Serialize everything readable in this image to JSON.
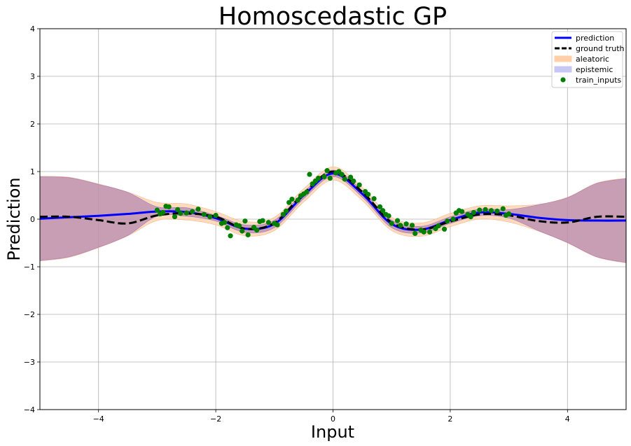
{
  "chart_data": {
    "type": "line",
    "title": "Homoscedastic GP",
    "xlabel": "Input",
    "ylabel": "Prediction",
    "xlim": [
      -5,
      5
    ],
    "ylim": [
      -4,
      4
    ],
    "xticks": [
      -4,
      -2,
      0,
      2,
      4
    ],
    "yticks": [
      -4,
      -3,
      -2,
      -1,
      0,
      1,
      2,
      3,
      4
    ],
    "xtick_labels": [
      "−4",
      "−2",
      "0",
      "2",
      "4"
    ],
    "ytick_labels": [
      "−4",
      "−3",
      "−2",
      "−1",
      "0",
      "1",
      "2",
      "3",
      "4"
    ],
    "grid": true,
    "legend": {
      "placement": "top-right",
      "entries": [
        {
          "label": "prediction",
          "kind": "line",
          "color": "#0000ff"
        },
        {
          "label": "ground truth",
          "kind": "dashed",
          "color": "#000000"
        },
        {
          "label": "aleatoric",
          "kind": "patch",
          "color": "#ffcfa8"
        },
        {
          "label": "epistemic",
          "kind": "patch",
          "color": "#c7c7f5"
        },
        {
          "label": "train_inputs",
          "kind": "marker",
          "color": "#008000"
        }
      ]
    },
    "x_grid": [
      -5.0,
      -4.5,
      -4.0,
      -3.5,
      -3.0,
      -2.5,
      -2.0,
      -1.5,
      -1.0,
      -0.5,
      0.0,
      0.5,
      1.0,
      1.5,
      2.0,
      2.5,
      3.0,
      3.5,
      4.0,
      4.5,
      5.0
    ],
    "series": [
      {
        "name": "prediction",
        "values": [
          0.01,
          0.04,
          0.07,
          0.11,
          0.16,
          0.15,
          0.02,
          -0.2,
          -0.1,
          0.5,
          0.96,
          0.53,
          -0.1,
          -0.22,
          -0.02,
          0.14,
          0.11,
          0.03,
          -0.02,
          -0.03,
          -0.03
        ]
      },
      {
        "name": "ground truth",
        "values": [
          0.05,
          0.05,
          -0.02,
          -0.09,
          0.08,
          0.12,
          0.05,
          -0.2,
          -0.08,
          0.54,
          1.0,
          0.57,
          -0.07,
          -0.22,
          -0.05,
          0.1,
          0.08,
          -0.04,
          -0.07,
          0.05,
          0.05
        ]
      },
      {
        "name": "aleatoric",
        "lower": [
          -0.88,
          -0.8,
          -0.6,
          -0.35,
          -0.03,
          -0.02,
          -0.12,
          -0.35,
          -0.24,
          0.36,
          0.82,
          0.39,
          -0.24,
          -0.36,
          -0.16,
          0.0,
          -0.06,
          -0.25,
          -0.5,
          -0.8,
          -0.92
        ],
        "upper": [
          0.9,
          0.88,
          0.74,
          0.57,
          0.35,
          0.32,
          0.16,
          -0.05,
          0.04,
          0.64,
          1.1,
          0.67,
          0.04,
          -0.08,
          0.12,
          0.28,
          0.28,
          0.31,
          0.46,
          0.76,
          0.86
        ]
      },
      {
        "name": "epistemic",
        "lower": [
          -0.87,
          -0.79,
          -0.59,
          -0.34,
          0.06,
          0.06,
          -0.04,
          -0.28,
          -0.18,
          0.43,
          0.89,
          0.46,
          -0.18,
          -0.29,
          -0.09,
          0.07,
          0.02,
          -0.24,
          -0.49,
          -0.79,
          -0.91
        ],
        "upper": [
          0.89,
          0.87,
          0.73,
          0.56,
          0.26,
          0.24,
          0.08,
          -0.12,
          -0.02,
          0.57,
          1.03,
          0.6,
          -0.02,
          -0.15,
          0.05,
          0.21,
          0.2,
          0.3,
          0.45,
          0.75,
          0.85
        ]
      }
    ],
    "train_inputs": [
      [
        -3.0,
        0.19
      ],
      [
        -2.95,
        0.11
      ],
      [
        -2.9,
        0.14
      ],
      [
        -2.85,
        0.27
      ],
      [
        -2.8,
        0.26
      ],
      [
        -2.7,
        0.05
      ],
      [
        -2.65,
        0.2
      ],
      [
        -2.6,
        0.12
      ],
      [
        -2.5,
        0.13
      ],
      [
        -2.4,
        0.16
      ],
      [
        -2.3,
        0.21
      ],
      [
        -2.2,
        0.1
      ],
      [
        -2.1,
        0.05
      ],
      [
        -2.0,
        0.08
      ],
      [
        -1.9,
        -0.09
      ],
      [
        -1.85,
        -0.07
      ],
      [
        -1.8,
        -0.18
      ],
      [
        -1.75,
        -0.35
      ],
      [
        -1.65,
        -0.12
      ],
      [
        -1.6,
        -0.14
      ],
      [
        -1.55,
        -0.25
      ],
      [
        -1.5,
        -0.04
      ],
      [
        -1.45,
        -0.33
      ],
      [
        -1.35,
        -0.17
      ],
      [
        -1.3,
        -0.23
      ],
      [
        -1.25,
        -0.05
      ],
      [
        -1.2,
        -0.03
      ],
      [
        -1.1,
        -0.07
      ],
      [
        -1.0,
        -0.09
      ],
      [
        -0.95,
        -0.12
      ],
      [
        -0.85,
        0.1
      ],
      [
        -0.8,
        0.17
      ],
      [
        -0.75,
        0.35
      ],
      [
        -0.7,
        0.42
      ],
      [
        -0.6,
        0.4
      ],
      [
        -0.55,
        0.49
      ],
      [
        -0.5,
        0.53
      ],
      [
        -0.45,
        0.57
      ],
      [
        -0.4,
        0.94
      ],
      [
        -0.35,
        0.74
      ],
      [
        -0.3,
        0.8
      ],
      [
        -0.25,
        0.86
      ],
      [
        -0.15,
        0.89
      ],
      [
        -0.1,
        1.02
      ],
      [
        -0.05,
        0.86
      ],
      [
        0.05,
        0.97
      ],
      [
        0.1,
        1.0
      ],
      [
        0.15,
        0.94
      ],
      [
        0.2,
        0.84
      ],
      [
        0.3,
        0.88
      ],
      [
        0.35,
        0.8
      ],
      [
        0.45,
        0.72
      ],
      [
        0.55,
        0.58
      ],
      [
        0.6,
        0.52
      ],
      [
        0.7,
        0.43
      ],
      [
        0.8,
        0.26
      ],
      [
        0.85,
        0.18
      ],
      [
        0.9,
        0.1
      ],
      [
        0.95,
        0.07
      ],
      [
        1.0,
        -0.09
      ],
      [
        1.1,
        -0.03
      ],
      [
        1.15,
        -0.13
      ],
      [
        1.25,
        -0.1
      ],
      [
        1.35,
        -0.13
      ],
      [
        1.4,
        -0.3
      ],
      [
        1.5,
        -0.23
      ],
      [
        1.55,
        -0.27
      ],
      [
        1.65,
        -0.27
      ],
      [
        1.75,
        -0.2
      ],
      [
        1.8,
        -0.14
      ],
      [
        1.9,
        -0.21
      ],
      [
        1.95,
        -0.04
      ],
      [
        2.05,
        0.0
      ],
      [
        2.1,
        0.13
      ],
      [
        2.15,
        0.18
      ],
      [
        2.2,
        0.16
      ],
      [
        2.3,
        0.1
      ],
      [
        2.35,
        0.05
      ],
      [
        2.4,
        0.14
      ],
      [
        2.5,
        0.19
      ],
      [
        2.6,
        0.2
      ],
      [
        2.7,
        0.18
      ],
      [
        2.8,
        0.17
      ],
      [
        2.9,
        0.22
      ],
      [
        2.95,
        0.08
      ],
      [
        3.0,
        0.11
      ]
    ]
  }
}
